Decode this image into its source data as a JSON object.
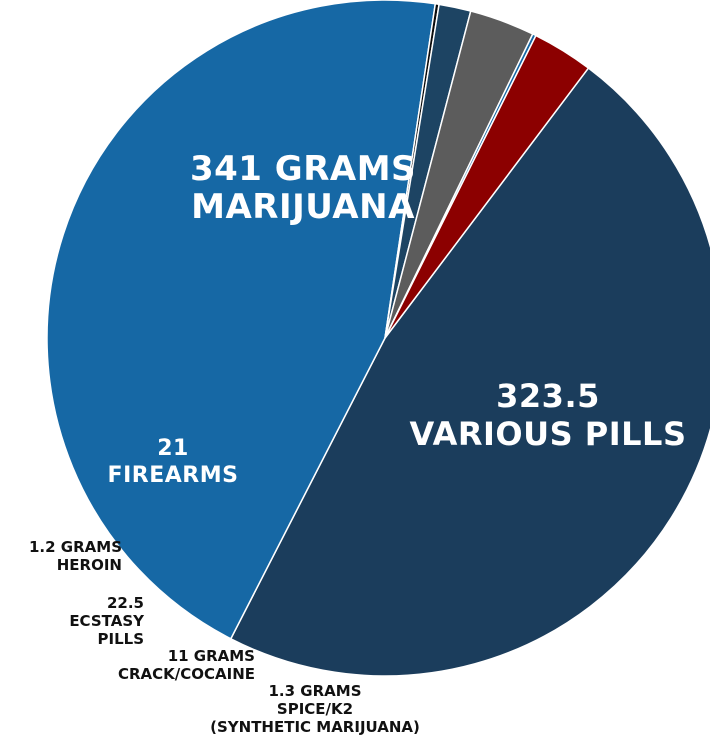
{
  "chart_data": {
    "type": "pie",
    "title": "",
    "slices": [
      {
        "lines": [
          "341 GRAMS",
          "MARIJUANA"
        ],
        "value": 341,
        "color": "#1b3d5c",
        "label_style": "inside"
      },
      {
        "lines": [
          "323.5",
          "VARIOUS PILLS"
        ],
        "value": 323.5,
        "color": "#1668a5",
        "label_style": "inside"
      },
      {
        "lines": [
          "1.3 GRAMS",
          "SPICE/K2",
          "(SYNTHETIC MARIJUANA)"
        ],
        "value": 1.3,
        "color": "#0b0b0b",
        "label_style": "outside"
      },
      {
        "lines": [
          "11 GRAMS",
          "CRACK/COCAINE"
        ],
        "value": 11,
        "color": "#1d4463",
        "label_style": "outside"
      },
      {
        "lines": [
          "22.5",
          "ECSTASY",
          "PILLS"
        ],
        "value": 22.5,
        "color": "#5c5c5c",
        "label_style": "outside"
      },
      {
        "lines": [
          "1.2 GRAMS",
          "HEROIN"
        ],
        "value": 1.2,
        "color": "#1668a5",
        "label_style": "outside"
      },
      {
        "lines": [
          "21",
          "FIREARMS"
        ],
        "value": 21,
        "color": "#8c0000",
        "label_style": "inside"
      }
    ]
  }
}
